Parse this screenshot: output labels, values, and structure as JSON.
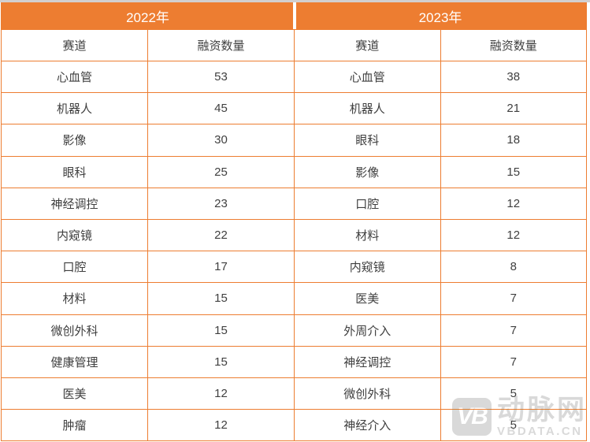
{
  "colors": {
    "accent_orange": "#ed7d31",
    "header_text": "#ffffff",
    "cell_text": "#3f3f3f",
    "watermark_gray": "#d9d9d9",
    "top_strip_gray": "#d2cfcf"
  },
  "tables": [
    {
      "year": "2022年",
      "headers": [
        "赛道",
        "融资数量"
      ],
      "rows": [
        [
          "心血管",
          "53"
        ],
        [
          "机器人",
          "45"
        ],
        [
          "影像",
          "30"
        ],
        [
          "眼科",
          "25"
        ],
        [
          "神经调控",
          "23"
        ],
        [
          "内窥镜",
          "22"
        ],
        [
          "口腔",
          "17"
        ],
        [
          "材料",
          "15"
        ],
        [
          "微创外科",
          "15"
        ],
        [
          "健康管理",
          "15"
        ],
        [
          "医美",
          "12"
        ],
        [
          "肿瘤",
          "12"
        ]
      ]
    },
    {
      "year": "2023年",
      "headers": [
        "赛道",
        "融资数量"
      ],
      "rows": [
        [
          "心血管",
          "38"
        ],
        [
          "机器人",
          "21"
        ],
        [
          "眼科",
          "18"
        ],
        [
          "影像",
          "15"
        ],
        [
          "口腔",
          "12"
        ],
        [
          "材料",
          "12"
        ],
        [
          "内窥镜",
          "8"
        ],
        [
          "医美",
          "7"
        ],
        [
          "外周介入",
          "7"
        ],
        [
          "神经调控",
          "7"
        ],
        [
          "微创外科",
          "5"
        ],
        [
          "神经介入",
          "5"
        ]
      ]
    }
  ],
  "watermark": {
    "logo": "VB",
    "brand": "动脉网",
    "site": "VBDATA.CN"
  },
  "chart_data": {
    "type": "table",
    "title": "",
    "tables": [
      {
        "label": "2022年",
        "columns": [
          "赛道",
          "融资数量"
        ],
        "rows": [
          [
            "心血管",
            53
          ],
          [
            "机器人",
            45
          ],
          [
            "影像",
            30
          ],
          [
            "眼科",
            25
          ],
          [
            "神经调控",
            23
          ],
          [
            "内窥镜",
            22
          ],
          [
            "口腔",
            17
          ],
          [
            "材料",
            15
          ],
          [
            "微创外科",
            15
          ],
          [
            "健康管理",
            15
          ],
          [
            "医美",
            12
          ],
          [
            "肿瘤",
            12
          ]
        ]
      },
      {
        "label": "2023年",
        "columns": [
          "赛道",
          "融资数量"
        ],
        "rows": [
          [
            "心血管",
            38
          ],
          [
            "机器人",
            21
          ],
          [
            "眼科",
            18
          ],
          [
            "影像",
            15
          ],
          [
            "口腔",
            12
          ],
          [
            "材料",
            12
          ],
          [
            "内窥镜",
            8
          ],
          [
            "医美",
            7
          ],
          [
            "外周介入",
            7
          ],
          [
            "神经调控",
            7
          ],
          [
            "微创外科",
            5
          ],
          [
            "神经介入",
            5
          ]
        ]
      }
    ]
  }
}
